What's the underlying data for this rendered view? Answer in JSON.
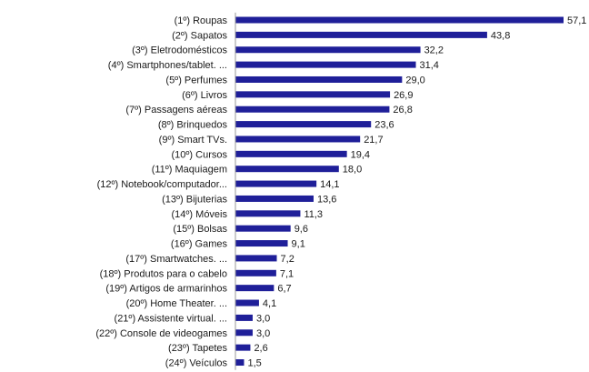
{
  "chart_data": {
    "type": "bar",
    "orientation": "horizontal",
    "categories": [
      "(1º) Roupas",
      "(2º) Sapatos",
      "(3º) Eletrodomésticos",
      "(4º) Smartphones/tablet. ...",
      "(5º) Perfumes",
      "(6º) Livros",
      "(7º) Passagens aéreas",
      "(8º) Brinquedos",
      "(9º) Smart TVs.",
      "(10º) Cursos",
      "(11º) Maquiagem",
      "(12º) Notebook/computador...",
      "(13º) Bijuterias",
      "(14º) Móveis",
      "(15º) Bolsas",
      "(16º) Games",
      "(17º) Smartwatches. ...",
      "(18º) Produtos para o cabelo",
      "(19º) Artigos de armarinhos",
      "(20º) Home Theater. ...",
      "(21º) Assistente virtual. ...",
      "(22º) Console de videogames",
      "(23º) Tapetes",
      "(24º) Veículos"
    ],
    "values": [
      57.1,
      43.8,
      32.2,
      31.4,
      29.0,
      26.9,
      26.8,
      23.6,
      21.7,
      19.4,
      18.0,
      14.1,
      13.6,
      11.3,
      9.6,
      9.1,
      7.2,
      7.1,
      6.7,
      4.1,
      3.0,
      3.0,
      2.6,
      1.5
    ],
    "value_labels": [
      "57,1",
      "43,8",
      "32,2",
      "31,4",
      "29,0",
      "26,9",
      "26,8",
      "23,6",
      "21,7",
      "19,4",
      "18,0",
      "14,1",
      "13,6",
      "11,3",
      "9,6",
      "9,1",
      "7,2",
      "7,1",
      "6,7",
      "4,1",
      "3,0",
      "3,0",
      "2,6",
      "1,5"
    ],
    "bar_color": "#1f1f99",
    "title": "",
    "xlabel": "",
    "ylabel": "",
    "grid": false,
    "legend": "none"
  }
}
